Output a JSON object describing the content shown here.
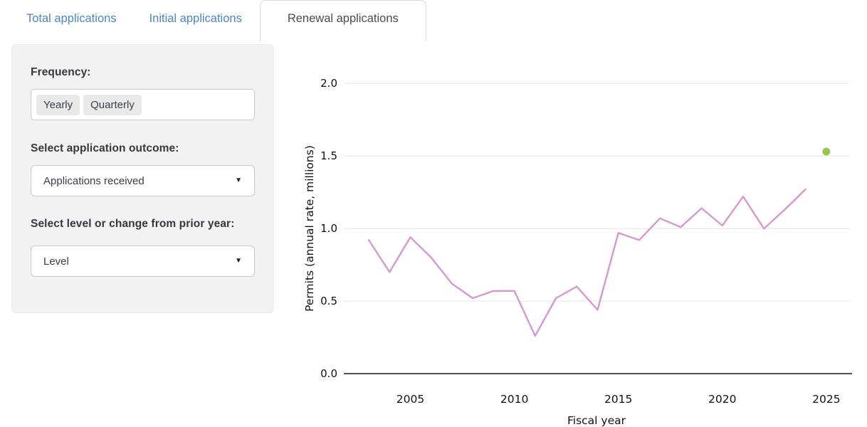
{
  "tabs": [
    {
      "label": "Total applications",
      "active": false
    },
    {
      "label": "Initial applications",
      "active": false
    },
    {
      "label": "Renewal applications",
      "active": true
    }
  ],
  "sidebar": {
    "frequency_label": "Frequency:",
    "frequency_options": [
      "Yearly",
      "Quarterly"
    ],
    "outcome_label": "Select application outcome:",
    "outcome_value": "Applications received",
    "level_label": "Select level or change from prior year:",
    "level_value": "Level"
  },
  "colors": {
    "tab_link": "#4a86c8",
    "line": "#d698d4",
    "marker": "#98c64f",
    "gridline": "#e8e8e8",
    "axis": "#1a1a1a"
  },
  "chart_data": {
    "type": "line",
    "title": "",
    "xlabel": "Fiscal year",
    "ylabel": "Permits (annual rate, millions)",
    "x_ticks": [
      2005,
      2010,
      2015,
      2020,
      2025
    ],
    "y_ticks": [
      0.0,
      0.5,
      1.0,
      1.5,
      2.0
    ],
    "xlim": [
      2001.8,
      2026.1
    ],
    "ylim": [
      0,
      2.05
    ],
    "grid": true,
    "legend": "none",
    "series": [
      {
        "name": "",
        "type": "line",
        "color": "#d698d4",
        "x": [
          2003,
          2004,
          2005,
          2006,
          2007,
          2008,
          2009,
          2010,
          2011,
          2012,
          2013,
          2014,
          2015,
          2016,
          2017,
          2018,
          2019,
          2020,
          2021,
          2022,
          2023,
          2024
        ],
        "values": [
          0.92,
          0.7,
          0.94,
          0.8,
          0.62,
          0.52,
          0.57,
          0.57,
          0.26,
          0.52,
          0.6,
          0.44,
          0.97,
          0.92,
          1.07,
          1.01,
          1.14,
          1.02,
          1.22,
          1.0,
          1.13,
          1.27
        ]
      },
      {
        "name": "",
        "type": "scatter",
        "color": "#98c64f",
        "x": [
          2025
        ],
        "values": [
          1.53
        ]
      }
    ]
  }
}
